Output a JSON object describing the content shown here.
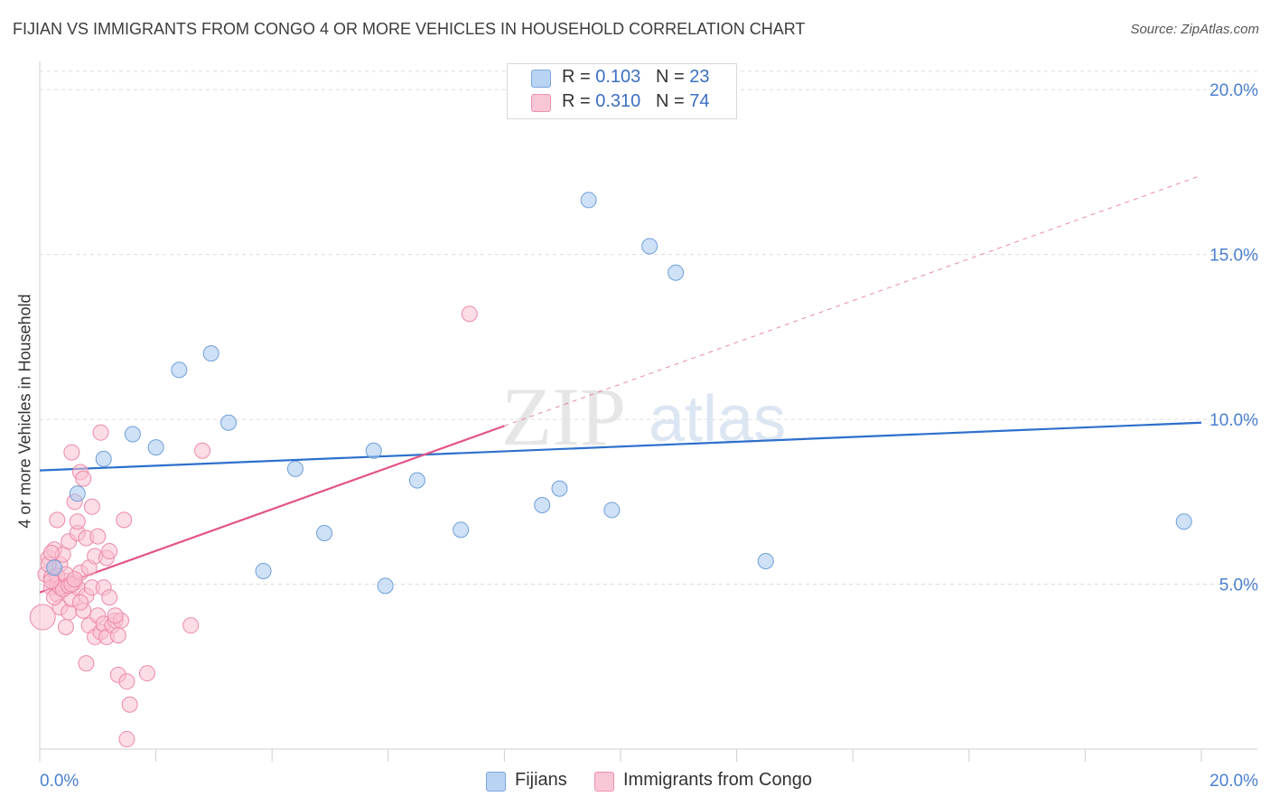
{
  "chart_data": {
    "type": "scatter",
    "title": "FIJIAN VS IMMIGRANTS FROM CONGO 4 OR MORE VEHICLES IN HOUSEHOLD CORRELATION CHART",
    "source": "Source: ZipAtlas.com",
    "xlabel": "",
    "ylabel": "4 or more Vehicles in Household",
    "xlim": [
      0,
      20
    ],
    "ylim": [
      0,
      20.8
    ],
    "x_tick_labels": [
      "0.0%",
      "20.0%"
    ],
    "y_ticks": [
      5,
      10,
      15,
      20
    ],
    "y_tick_labels": [
      "5.0%",
      "10.0%",
      "15.0%",
      "20.0%"
    ],
    "watermark": {
      "zip": "ZIP",
      "atlas": "atlas"
    },
    "legend": [
      {
        "r_label": "R = ",
        "r_value": "0.103",
        "n_label": "N = ",
        "n_value": "23"
      },
      {
        "r_label": "R = ",
        "r_value": "0.310",
        "n_label": "N = ",
        "n_value": "74"
      }
    ],
    "series": [
      {
        "name": "Fijians",
        "fill": "#a8c8f0",
        "stroke": "#6f9fd8",
        "line_color": "#2d6fcc",
        "trend": {
          "x0": 0,
          "y0": 8.45,
          "x1": 20,
          "y1": 9.9
        },
        "points": [
          [
            0.65,
            7.75
          ],
          [
            1.1,
            8.8
          ],
          [
            1.6,
            9.55
          ],
          [
            2.0,
            9.15
          ],
          [
            2.4,
            11.5
          ],
          [
            2.95,
            12.0
          ],
          [
            3.25,
            9.9
          ],
          [
            3.85,
            5.4
          ],
          [
            4.4,
            8.5
          ],
          [
            4.9,
            6.55
          ],
          [
            5.75,
            9.05
          ],
          [
            5.95,
            4.95
          ],
          [
            6.5,
            8.15
          ],
          [
            7.25,
            6.65
          ],
          [
            8.65,
            7.4
          ],
          [
            8.95,
            7.9
          ],
          [
            9.45,
            16.65
          ],
          [
            9.85,
            7.25
          ],
          [
            10.5,
            15.25
          ],
          [
            10.95,
            14.45
          ],
          [
            12.5,
            5.7
          ],
          [
            19.7,
            6.9
          ],
          [
            0.25,
            5.5
          ]
        ]
      },
      {
        "name": "Immigrants from Congo",
        "fill": "#f9bfd0",
        "stroke": "#ec8aa8",
        "line_color": "#e25588",
        "trend": {
          "x0": 0,
          "y0": 4.75,
          "x1": 8.0,
          "y1": 9.8
        },
        "trend_extension": {
          "x0": 8.0,
          "y0": 9.8,
          "x1": 20,
          "y1": 17.4
        },
        "points": [
          [
            0.05,
            4.0
          ],
          [
            0.1,
            5.3
          ],
          [
            0.15,
            5.8
          ],
          [
            0.2,
            5.2
          ],
          [
            0.2,
            4.9
          ],
          [
            0.25,
            6.05
          ],
          [
            0.25,
            5.5
          ],
          [
            0.3,
            4.7
          ],
          [
            0.3,
            5.0
          ],
          [
            0.35,
            4.3
          ],
          [
            0.35,
            5.6
          ],
          [
            0.4,
            5.9
          ],
          [
            0.4,
            4.95
          ],
          [
            0.45,
            3.7
          ],
          [
            0.45,
            5.1
          ],
          [
            0.5,
            6.3
          ],
          [
            0.5,
            4.15
          ],
          [
            0.55,
            9.0
          ],
          [
            0.55,
            4.55
          ],
          [
            0.6,
            5.05
          ],
          [
            0.6,
            7.5
          ],
          [
            0.65,
            6.55
          ],
          [
            0.65,
            4.9
          ],
          [
            0.7,
            5.35
          ],
          [
            0.7,
            8.4
          ],
          [
            0.75,
            4.2
          ],
          [
            0.75,
            8.2
          ],
          [
            0.8,
            6.4
          ],
          [
            0.8,
            4.65
          ],
          [
            0.8,
            2.6
          ],
          [
            0.85,
            5.5
          ],
          [
            0.85,
            3.75
          ],
          [
            0.9,
            4.9
          ],
          [
            0.9,
            7.35
          ],
          [
            0.95,
            3.4
          ],
          [
            0.95,
            5.85
          ],
          [
            1.0,
            6.45
          ],
          [
            1.0,
            4.05
          ],
          [
            1.05,
            3.55
          ],
          [
            1.05,
            9.6
          ],
          [
            1.1,
            4.9
          ],
          [
            1.1,
            3.8
          ],
          [
            1.15,
            5.8
          ],
          [
            1.15,
            3.4
          ],
          [
            1.2,
            6.0
          ],
          [
            1.2,
            4.6
          ],
          [
            1.25,
            3.75
          ],
          [
            1.3,
            3.9
          ],
          [
            1.35,
            3.45
          ],
          [
            1.35,
            2.25
          ],
          [
            1.4,
            3.9
          ],
          [
            1.45,
            6.95
          ],
          [
            1.5,
            2.05
          ],
          [
            1.55,
            1.35
          ],
          [
            1.5,
            0.3
          ],
          [
            1.85,
            2.3
          ],
          [
            2.6,
            3.75
          ],
          [
            2.8,
            9.05
          ],
          [
            7.4,
            13.2
          ],
          [
            0.15,
            5.6
          ],
          [
            0.2,
            5.95
          ],
          [
            0.25,
            4.6
          ],
          [
            0.3,
            5.25
          ],
          [
            0.35,
            4.9
          ],
          [
            0.4,
            4.85
          ],
          [
            0.45,
            5.3
          ],
          [
            0.5,
            4.95
          ],
          [
            0.55,
            5.0
          ],
          [
            0.6,
            5.15
          ],
          [
            0.7,
            4.45
          ],
          [
            0.2,
            5.1
          ],
          [
            0.3,
            6.95
          ],
          [
            0.65,
            6.9
          ],
          [
            1.3,
            4.05
          ]
        ]
      }
    ]
  }
}
